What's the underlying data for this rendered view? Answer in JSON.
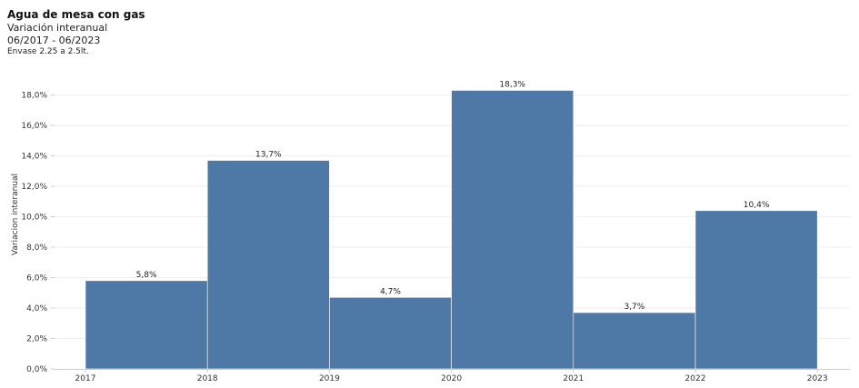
{
  "header": {
    "title": "Agua de mesa con gas",
    "subtitle": "Variación interanual",
    "period": "06/2017 - 06/2023",
    "note": "Envase 2.25 a 2.5lt."
  },
  "colors": {
    "bar": "#4e79a7",
    "gridline": "#eeeeee",
    "axis": "#cccccc"
  },
  "chart_data": {
    "type": "bar",
    "x_ticks": [
      "2017",
      "2018",
      "2019",
      "2020",
      "2021",
      "2022",
      "2023"
    ],
    "values": [
      5.8,
      13.7,
      4.7,
      18.3,
      3.7,
      10.4
    ],
    "value_labels": [
      "5,8%",
      "13,7%",
      "4,7%",
      "18,3%",
      "3,7%",
      "10,4%"
    ],
    "ylabel": "Variacion interanual",
    "ylim": [
      0,
      18.3
    ],
    "y_ticks": [
      0,
      2,
      4,
      6,
      8,
      10,
      12,
      14,
      16,
      18
    ],
    "y_tick_labels": [
      "0,0%",
      "2,0%",
      "4,0%",
      "6,0%",
      "8,0%",
      "10,0%",
      "12,0%",
      "14,0%",
      "16,0%",
      "18,0%"
    ],
    "grid": true
  }
}
